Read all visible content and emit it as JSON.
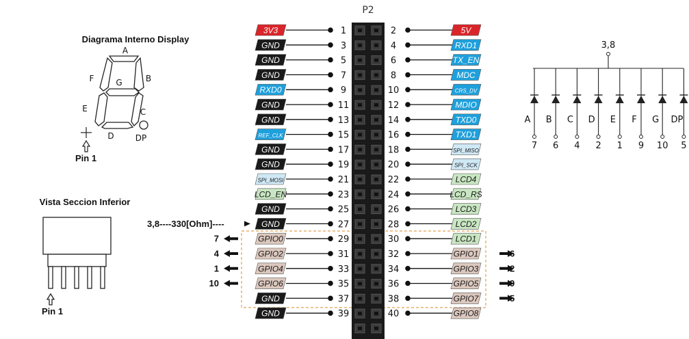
{
  "header_title": "P2",
  "display": {
    "internal_title": "Diagrama Interno Display",
    "pin1_label_top": "Pin 1",
    "segments": [
      "A",
      "B",
      "C",
      "D",
      "E",
      "F",
      "G",
      "DP"
    ],
    "section_title": "Vista Seccion Inferior",
    "pin1_label_bottom": "Pin 1"
  },
  "left_pins": [
    {
      "pin": "1",
      "label": "3V3",
      "color": "#d9252a",
      "text": "#ffffff"
    },
    {
      "pin": "3",
      "label": "GND",
      "color": "#1a1a1a",
      "text": "#ffffff"
    },
    {
      "pin": "5",
      "label": "GND",
      "color": "#1a1a1a",
      "text": "#ffffff"
    },
    {
      "pin": "7",
      "label": "GND",
      "color": "#1a1a1a",
      "text": "#ffffff"
    },
    {
      "pin": "9",
      "label": "RXD0",
      "color": "#1ea0dc",
      "text": "#ffffff"
    },
    {
      "pin": "11",
      "label": "GND",
      "color": "#1a1a1a",
      "text": "#ffffff"
    },
    {
      "pin": "13",
      "label": "GND",
      "color": "#1a1a1a",
      "text": "#ffffff"
    },
    {
      "pin": "15",
      "label": "REF_CLK",
      "color": "#1ea0dc",
      "text": "#ffffff",
      "small": true
    },
    {
      "pin": "17",
      "label": "GND",
      "color": "#1a1a1a",
      "text": "#ffffff"
    },
    {
      "pin": "19",
      "label": "GND",
      "color": "#1a1a1a",
      "text": "#ffffff"
    },
    {
      "pin": "21",
      "label": "SPI_MOSI",
      "color": "#cfe8f5",
      "text": "#1a1a1a",
      "small": true
    },
    {
      "pin": "23",
      "label": "LCD_EN",
      "color": "#c8e6c2",
      "text": "#1a1a1a"
    },
    {
      "pin": "25",
      "label": "GND",
      "color": "#1a1a1a",
      "text": "#ffffff"
    },
    {
      "pin": "27",
      "label": "GND",
      "color": "#1a1a1a",
      "text": "#ffffff"
    },
    {
      "pin": "29",
      "label": "GPIO0",
      "color": "#dcc8be",
      "text": "#1a1a1a"
    },
    {
      "pin": "31",
      "label": "GPIO2",
      "color": "#dcc8be",
      "text": "#1a1a1a"
    },
    {
      "pin": "33",
      "label": "GPIO4",
      "color": "#dcc8be",
      "text": "#1a1a1a"
    },
    {
      "pin": "35",
      "label": "GPIO6",
      "color": "#dcc8be",
      "text": "#1a1a1a"
    },
    {
      "pin": "37",
      "label": "GND",
      "color": "#1a1a1a",
      "text": "#ffffff"
    },
    {
      "pin": "39",
      "label": "GND",
      "color": "#1a1a1a",
      "text": "#ffffff"
    }
  ],
  "right_pins": [
    {
      "pin": "2",
      "label": "5V",
      "color": "#d9252a",
      "text": "#ffffff"
    },
    {
      "pin": "4",
      "label": "RXD1",
      "color": "#1ea0dc",
      "text": "#ffffff"
    },
    {
      "pin": "6",
      "label": "TX_EN",
      "color": "#1ea0dc",
      "text": "#ffffff"
    },
    {
      "pin": "8",
      "label": "MDC",
      "color": "#1ea0dc",
      "text": "#ffffff"
    },
    {
      "pin": "10",
      "label": "CRS_DV",
      "color": "#1ea0dc",
      "text": "#ffffff",
      "small": true
    },
    {
      "pin": "12",
      "label": "MDIO",
      "color": "#1ea0dc",
      "text": "#ffffff"
    },
    {
      "pin": "14",
      "label": "TXD0",
      "color": "#1ea0dc",
      "text": "#ffffff"
    },
    {
      "pin": "16",
      "label": "TXD1",
      "color": "#1ea0dc",
      "text": "#ffffff"
    },
    {
      "pin": "18",
      "label": "SPI_MISO",
      "color": "#cfe8f5",
      "text": "#1a1a1a",
      "small": true
    },
    {
      "pin": "20",
      "label": "SPI_SCK",
      "color": "#cfe8f5",
      "text": "#1a1a1a",
      "small": true
    },
    {
      "pin": "22",
      "label": "LCD4",
      "color": "#c8e6c2",
      "text": "#1a1a1a"
    },
    {
      "pin": "24",
      "label": "LCD_RS",
      "color": "#c8e6c2",
      "text": "#1a1a1a"
    },
    {
      "pin": "26",
      "label": "LCD3",
      "color": "#c8e6c2",
      "text": "#1a1a1a"
    },
    {
      "pin": "28",
      "label": "LCD2",
      "color": "#c8e6c2",
      "text": "#1a1a1a"
    },
    {
      "pin": "30",
      "label": "LCD1",
      "color": "#c8e6c2",
      "text": "#1a1a1a"
    },
    {
      "pin": "32",
      "label": "GPIO1",
      "color": "#dcc8be",
      "text": "#1a1a1a"
    },
    {
      "pin": "34",
      "label": "GPIO3",
      "color": "#dcc8be",
      "text": "#1a1a1a"
    },
    {
      "pin": "36",
      "label": "GPIO5",
      "color": "#dcc8be",
      "text": "#1a1a1a"
    },
    {
      "pin": "38",
      "label": "GPIO7",
      "color": "#dcc8be",
      "text": "#1a1a1a"
    },
    {
      "pin": "40",
      "label": "GPIO8",
      "color": "#dcc8be",
      "text": "#1a1a1a"
    }
  ],
  "left_annotations": [
    {
      "row": 13,
      "text": "3,8----330[Ohm]----"
    },
    {
      "row": 14,
      "text": "7"
    },
    {
      "row": 15,
      "text": "4"
    },
    {
      "row": 16,
      "text": "1"
    },
    {
      "row": 17,
      "text": "10"
    }
  ],
  "right_annotations": [
    {
      "row": 15,
      "text": "6"
    },
    {
      "row": 16,
      "text": "2"
    },
    {
      "row": 17,
      "text": "9"
    },
    {
      "row": 18,
      "text": "5"
    }
  ],
  "schematic": {
    "common_label": "3,8",
    "diodes": [
      {
        "seg": "A",
        "pin": "7"
      },
      {
        "seg": "B",
        "pin": "6"
      },
      {
        "seg": "C",
        "pin": "4"
      },
      {
        "seg": "D",
        "pin": "2"
      },
      {
        "seg": "E",
        "pin": "1"
      },
      {
        "seg": "F",
        "pin": "9"
      },
      {
        "seg": "G",
        "pin": "10"
      },
      {
        "seg": "DP",
        "pin": "5"
      }
    ]
  }
}
